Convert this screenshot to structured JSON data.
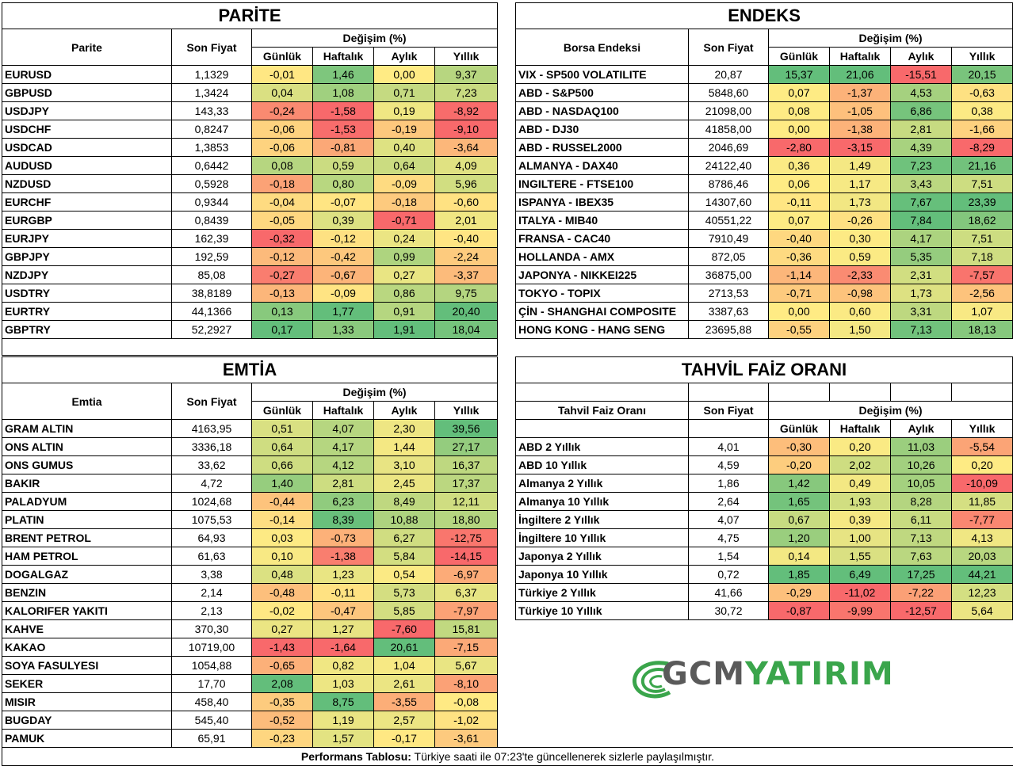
{
  "parite": {
    "title": "PARİTE",
    "col_name": "Parite",
    "col_price": "Son Fiyat",
    "col_change": "Değişim (%)",
    "sub": [
      "Günlük",
      "Haftalık",
      "Aylık",
      "Yıllık"
    ],
    "rows": [
      {
        "name": "EURUSD",
        "price": "1,1329",
        "vals": [
          "-0,01",
          "1,46",
          "0,00",
          "9,37"
        ]
      },
      {
        "name": "GBPUSD",
        "price": "1,3424",
        "vals": [
          "0,04",
          "1,08",
          "0,71",
          "7,23"
        ]
      },
      {
        "name": "USDJPY",
        "price": "143,33",
        "vals": [
          "-0,24",
          "-1,58",
          "0,19",
          "-8,92"
        ]
      },
      {
        "name": "USDCHF",
        "price": "0,8247",
        "vals": [
          "-0,06",
          "-1,53",
          "-0,19",
          "-9,10"
        ]
      },
      {
        "name": "USDCAD",
        "price": "1,3853",
        "vals": [
          "-0,06",
          "-0,81",
          "0,40",
          "-3,64"
        ]
      },
      {
        "name": "AUDUSD",
        "price": "0,6442",
        "vals": [
          "0,08",
          "0,59",
          "0,64",
          "4,09"
        ]
      },
      {
        "name": "NZDUSD",
        "price": "0,5928",
        "vals": [
          "-0,18",
          "0,80",
          "-0,09",
          "5,96"
        ]
      },
      {
        "name": "EURCHF",
        "price": "0,9344",
        "vals": [
          "-0,04",
          "-0,07",
          "-0,18",
          "-0,60"
        ]
      },
      {
        "name": "EURGBP",
        "price": "0,8439",
        "vals": [
          "-0,05",
          "0,39",
          "-0,71",
          "2,01"
        ]
      },
      {
        "name": "EURJPY",
        "price": "162,39",
        "vals": [
          "-0,32",
          "-0,12",
          "0,24",
          "-0,40"
        ]
      },
      {
        "name": "GBPJPY",
        "price": "192,59",
        "vals": [
          "-0,12",
          "-0,42",
          "0,99",
          "-2,24"
        ]
      },
      {
        "name": "NZDJPY",
        "price": "85,08",
        "vals": [
          "-0,27",
          "-0,67",
          "0,27",
          "-3,37"
        ]
      },
      {
        "name": "USDTRY",
        "price": "38,8189",
        "vals": [
          "-0,13",
          "-0,09",
          "0,86",
          "9,75"
        ]
      },
      {
        "name": "EURTRY",
        "price": "44,1366",
        "vals": [
          "0,13",
          "1,77",
          "0,91",
          "20,40"
        ]
      },
      {
        "name": "GBPTRY",
        "price": "52,2927",
        "vals": [
          "0,17",
          "1,33",
          "1,91",
          "18,04"
        ]
      }
    ]
  },
  "endeks": {
    "title": "ENDEKS",
    "col_name": "Borsa Endeksi",
    "col_price": "Son Fiyat",
    "col_change": "Değişim (%)",
    "sub": [
      "Günlük",
      "Haftalık",
      "Aylık",
      "Yıllık"
    ],
    "rows": [
      {
        "name": "VIX  - SP500 VOLATILITE",
        "price": "20,87",
        "vals": [
          "15,37",
          "21,06",
          "-15,51",
          "20,15"
        ]
      },
      {
        "name": "ABD - S&P500",
        "price": "5848,60",
        "vals": [
          "0,07",
          "-1,37",
          "4,53",
          "-0,63"
        ]
      },
      {
        "name": "ABD - NASDAQ100",
        "price": "21098,00",
        "vals": [
          "0,08",
          "-1,05",
          "6,86",
          "0,38"
        ]
      },
      {
        "name": "ABD - DJ30",
        "price": "41858,00",
        "vals": [
          "0,00",
          "-1,38",
          "2,81",
          "-1,66"
        ]
      },
      {
        "name": "ABD - RUSSEL2000",
        "price": "2046,69",
        "vals": [
          "-2,80",
          "-3,15",
          "4,39",
          "-8,29"
        ]
      },
      {
        "name": "ALMANYA - DAX40",
        "price": "24122,40",
        "vals": [
          "0,36",
          "1,49",
          "7,23",
          "21,16"
        ]
      },
      {
        "name": "INGILTERE - FTSE100",
        "price": "8786,46",
        "vals": [
          "0,06",
          "1,17",
          "3,43",
          "7,51"
        ]
      },
      {
        "name": "ISPANYA - IBEX35",
        "price": "14307,60",
        "vals": [
          "-0,11",
          "1,73",
          "7,67",
          "23,39"
        ]
      },
      {
        "name": "ITALYA - MIB40",
        "price": "40551,22",
        "vals": [
          "0,07",
          "-0,26",
          "7,84",
          "18,62"
        ]
      },
      {
        "name": "FRANSA - CAC40",
        "price": "7910,49",
        "vals": [
          "-0,40",
          "0,30",
          "4,17",
          "7,51"
        ]
      },
      {
        "name": "HOLLANDA - AMX",
        "price": "872,05",
        "vals": [
          "-0,36",
          "0,59",
          "5,35",
          "7,18"
        ]
      },
      {
        "name": "JAPONYA - NIKKEI225",
        "price": "36875,00",
        "vals": [
          "-1,14",
          "-2,33",
          "2,31",
          "-7,57"
        ]
      },
      {
        "name": "TOKYO - TOPIX",
        "price": "2713,53",
        "vals": [
          "-0,71",
          "-0,98",
          "1,73",
          "-2,56"
        ]
      },
      {
        "name": "ÇİN - SHANGHAI COMPOSITE",
        "price": "3387,63",
        "vals": [
          "0,00",
          "0,60",
          "3,31",
          "1,07"
        ]
      },
      {
        "name": "HONG KONG - HANG SENG",
        "price": "23695,88",
        "vals": [
          "-0,55",
          "1,50",
          "7,13",
          "18,13"
        ]
      }
    ]
  },
  "emtia": {
    "title": "EMTİA",
    "col_name": "Emtia",
    "col_price": "Son Fiyat",
    "col_change": "Değişim (%)",
    "sub": [
      "Günlük",
      "Haftalık",
      "Aylık",
      "Yıllık"
    ],
    "rows": [
      {
        "name": "GRAM ALTIN",
        "price": "4163,95",
        "vals": [
          "0,51",
          "4,07",
          "2,30",
          "39,56"
        ]
      },
      {
        "name": "ONS ALTIN",
        "price": "3336,18",
        "vals": [
          "0,64",
          "4,17",
          "1,44",
          "27,17"
        ]
      },
      {
        "name": "ONS GUMUS",
        "price": "33,62",
        "vals": [
          "0,66",
          "4,12",
          "3,10",
          "16,37"
        ]
      },
      {
        "name": "BAKIR",
        "price": "4,72",
        "vals": [
          "1,40",
          "2,81",
          "2,45",
          "17,37"
        ]
      },
      {
        "name": "PALADYUM",
        "price": "1024,68",
        "vals": [
          "-0,44",
          "6,23",
          "8,49",
          "12,11"
        ]
      },
      {
        "name": "PLATIN",
        "price": "1075,53",
        "vals": [
          "-0,14",
          "8,39",
          "10,88",
          "18,80"
        ]
      },
      {
        "name": "BRENT PETROL",
        "price": "64,93",
        "vals": [
          "0,03",
          "-0,73",
          "6,27",
          "-12,75"
        ]
      },
      {
        "name": "HAM PETROL",
        "price": "61,63",
        "vals": [
          "0,10",
          "-1,38",
          "5,84",
          "-14,15"
        ]
      },
      {
        "name": "DOGALGAZ",
        "price": "3,38",
        "vals": [
          "0,48",
          "1,23",
          "0,54",
          "-6,97"
        ]
      },
      {
        "name": "BENZIN",
        "price": "2,14",
        "vals": [
          "-0,48",
          "-0,11",
          "5,73",
          "6,37"
        ]
      },
      {
        "name": "KALORIFER YAKITI",
        "price": "2,13",
        "vals": [
          "-0,02",
          "-0,47",
          "5,85",
          "-7,97"
        ]
      },
      {
        "name": "KAHVE",
        "price": "370,30",
        "vals": [
          "0,27",
          "1,27",
          "-7,60",
          "15,81"
        ]
      },
      {
        "name": "KAKAO",
        "price": "10719,00",
        "vals": [
          "-1,43",
          "-1,64",
          "20,61",
          "-7,15"
        ]
      },
      {
        "name": "SOYA FASULYESI",
        "price": "1054,88",
        "vals": [
          "-0,65",
          "0,82",
          "1,04",
          "5,67"
        ]
      },
      {
        "name": "SEKER",
        "price": "17,70",
        "vals": [
          "2,08",
          "1,03",
          "2,61",
          "-8,10"
        ]
      },
      {
        "name": "MISIR",
        "price": "458,40",
        "vals": [
          "-0,35",
          "8,75",
          "-3,55",
          "-0,08"
        ]
      },
      {
        "name": "BUGDAY",
        "price": "545,40",
        "vals": [
          "-0,52",
          "1,19",
          "2,57",
          "-1,02"
        ]
      },
      {
        "name": "PAMUK",
        "price": "65,91",
        "vals": [
          "-0,23",
          "1,57",
          "-0,17",
          "-3,61"
        ]
      }
    ]
  },
  "tahvil": {
    "title": "TAHVİL FAİZ ORANI",
    "col_name": "Tahvil Faiz Oranı",
    "col_price": "Son Fiyat",
    "col_change": "Değişim (%)",
    "sub": [
      "Günlük",
      "Haftalık",
      "Aylık",
      "Yıllık"
    ],
    "rows": [
      {
        "name": "ABD 2 Yıllık",
        "price": "4,01",
        "vals": [
          "-0,30",
          "0,20",
          "11,03",
          "-5,54"
        ]
      },
      {
        "name": "ABD 10 Yıllık",
        "price": "4,59",
        "vals": [
          "-0,20",
          "2,02",
          "10,26",
          "0,20"
        ]
      },
      {
        "name": "Almanya 2 Yıllık",
        "price": "1,86",
        "vals": [
          "1,42",
          "0,49",
          "10,05",
          "-10,09"
        ]
      },
      {
        "name": "Almanya 10 Yıllık",
        "price": "2,64",
        "vals": [
          "1,65",
          "1,93",
          "8,28",
          "11,85"
        ]
      },
      {
        "name": "İngiltere 2 Yıllık",
        "price": "4,07",
        "vals": [
          "0,67",
          "0,39",
          "6,11",
          "-7,77"
        ]
      },
      {
        "name": "İngiltere 10 Yıllık",
        "price": "4,75",
        "vals": [
          "1,20",
          "1,00",
          "7,13",
          "4,13"
        ]
      },
      {
        "name": "Japonya 2 Yıllık",
        "price": "1,54",
        "vals": [
          "0,14",
          "1,55",
          "7,63",
          "20,03"
        ]
      },
      {
        "name": "Japonya 10 Yıllık",
        "price": "0,72",
        "vals": [
          "1,85",
          "6,49",
          "17,25",
          "44,21"
        ]
      },
      {
        "name": "Türkiye 2 Yıllık",
        "price": "41,66",
        "vals": [
          "-0,29",
          "-11,02",
          "-7,22",
          "12,23"
        ]
      },
      {
        "name": "Türkiye 10 Yıllık",
        "price": "30,72",
        "vals": [
          "-0,87",
          "-9,99",
          "-12,57",
          "5,64"
        ]
      }
    ]
  },
  "footer": {
    "bold": "Performans Tablosu:",
    "text": " Türkiye saati ile 07:23'te güncellenerek sizlerle paylaşılmıştır."
  },
  "logo": {
    "part1": "GCM",
    "part2": "YATIRIM"
  },
  "colors": {
    "green": "#63be7b",
    "yellow": "#ffeb84",
    "red": "#f8696b",
    "logo_green": "#3aa54b",
    "logo_gray": "#5a5a5a"
  }
}
